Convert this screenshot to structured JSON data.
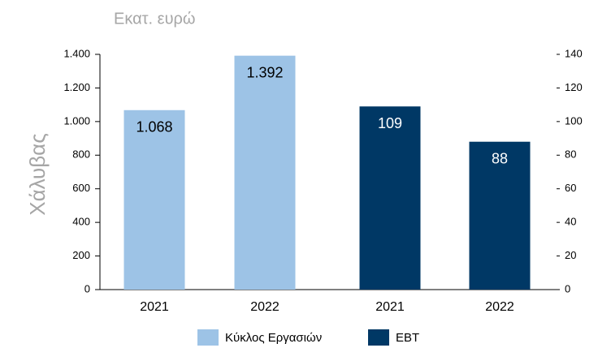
{
  "chart_data": {
    "type": "bar",
    "title": "Εκατ. ευρώ",
    "ylabel": "Χάλυβας",
    "categories": [
      "2021",
      "2022",
      "2021",
      "2022"
    ],
    "series": [
      {
        "name": "Κύκλος Εργασιών",
        "color": "#9dc3e6",
        "values": [
          1068,
          1392,
          null,
          null
        ],
        "value_labels": [
          "1.068",
          "1.392",
          null,
          null
        ]
      },
      {
        "name": "EBT",
        "color": "#003865",
        "axis": "y2",
        "values": [
          null,
          null,
          109,
          88
        ],
        "value_labels": [
          null,
          null,
          "109",
          "88"
        ]
      }
    ],
    "ylim": [
      0,
      1400
    ],
    "yticks": [
      0,
      200,
      400,
      600,
      800,
      {
        "value": 1000,
        "label": "1.000"
      },
      {
        "value": 1200,
        "label": "1.200"
      },
      {
        "value": 1400,
        "label": "1.400"
      }
    ],
    "y2lim": [
      0,
      140
    ],
    "y2ticks": [
      0,
      20,
      40,
      60,
      80,
      100,
      120,
      140
    ],
    "legend": "bottom"
  }
}
